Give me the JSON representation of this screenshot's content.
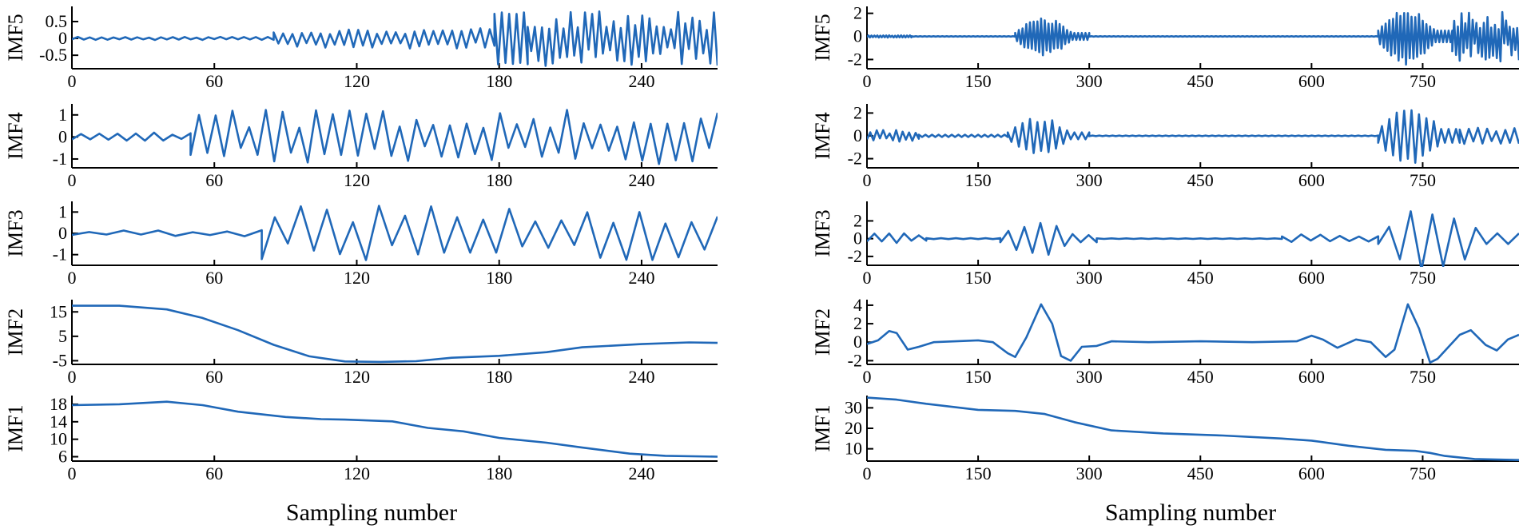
{
  "chart_data": [
    {
      "panel": "left",
      "type": "line",
      "xlabel": "Sampling number",
      "line_color": "#2068b8",
      "xlim": [
        0,
        272
      ],
      "xticks": [
        0,
        60,
        120,
        180,
        240
      ],
      "subplots": [
        {
          "ylabel": "IMF5",
          "ylim": [
            -0.9,
            0.95
          ],
          "yticks": [
            0.5,
            0,
            -0.5
          ],
          "ytick_labels": [
            "0.5",
            "0",
            "-0.5"
          ],
          "segments": [
            {
              "x0": 0,
              "x1": 85,
              "period": 5,
              "amp": [
                0.02,
                0.05
              ],
              "offset": 0
            },
            {
              "x0": 85,
              "x1": 178,
              "period": 4,
              "amp": [
                0.12,
                0.3
              ],
              "offset": 0
            },
            {
              "x0": 178,
              "x1": 192,
              "period": 3,
              "amp": [
                0.72,
                0.8
              ],
              "offset": 0
            },
            {
              "x0": 192,
              "x1": 272,
              "period": 3,
              "amp": [
                0.25,
                0.82
              ],
              "offset": 0
            }
          ]
        },
        {
          "ylabel": "IMF4",
          "ylim": [
            -1.4,
            1.5
          ],
          "yticks": [
            1,
            0,
            -1
          ],
          "ytick_labels": [
            "1",
            "0",
            "-1"
          ],
          "segments": [
            {
              "x0": 0,
              "x1": 50,
              "period": 8,
              "amp": [
                0.08,
                0.2
              ],
              "offset": 0
            },
            {
              "x0": 50,
              "x1": 272,
              "period": 7,
              "amp": [
                0.4,
                1.25
              ],
              "offset": 0
            }
          ]
        },
        {
          "ylabel": "IMF3",
          "ylim": [
            -1.5,
            1.5
          ],
          "yticks": [
            1,
            0,
            -1
          ],
          "ytick_labels": [
            "1",
            "0",
            "-1"
          ],
          "segments": [
            {
              "x0": 0,
              "x1": 80,
              "period": 14,
              "amp": [
                0.05,
                0.15
              ],
              "offset": 0
            },
            {
              "x0": 80,
              "x1": 272,
              "period": 11,
              "amp": [
                0.4,
                1.3
              ],
              "offset": 0
            }
          ]
        },
        {
          "ylabel": "IMF2",
          "ylim": [
            -6.5,
            20
          ],
          "yticks": [
            15,
            5,
            -5
          ],
          "ytick_labels": [
            "15",
            "5",
            "-5"
          ],
          "points": [
            [
              0,
              17.5
            ],
            [
              20,
              17.5
            ],
            [
              40,
              16
            ],
            [
              55,
              12.5
            ],
            [
              70,
              7.5
            ],
            [
              85,
              1.5
            ],
            [
              100,
              -3.2
            ],
            [
              115,
              -5.3
            ],
            [
              130,
              -5.5
            ],
            [
              145,
              -5.2
            ],
            [
              160,
              -3.8
            ],
            [
              180,
              -3.0
            ],
            [
              200,
              -1.5
            ],
            [
              215,
              0.5
            ],
            [
              240,
              1.8
            ],
            [
              260,
              2.5
            ],
            [
              272,
              2.3
            ]
          ]
        },
        {
          "ylabel": "IMF1",
          "ylim": [
            5,
            20
          ],
          "yticks": [
            18,
            14,
            10,
            6
          ],
          "ytick_labels": [
            "18",
            "14",
            "10",
            "6"
          ],
          "points": [
            [
              0,
              17.8
            ],
            [
              20,
              18.0
            ],
            [
              40,
              18.6
            ],
            [
              55,
              17.8
            ],
            [
              70,
              16.3
            ],
            [
              90,
              15.1
            ],
            [
              105,
              14.6
            ],
            [
              115,
              14.5
            ],
            [
              135,
              14.1
            ],
            [
              150,
              12.6
            ],
            [
              165,
              11.8
            ],
            [
              180,
              10.3
            ],
            [
              200,
              9.2
            ],
            [
              215,
              8.1
            ],
            [
              235,
              6.7
            ],
            [
              250,
              6.2
            ],
            [
              272,
              6.0
            ]
          ]
        }
      ]
    },
    {
      "panel": "right",
      "type": "line",
      "xlabel": "Sampling number",
      "line_color": "#2068b8",
      "xlim": [
        0,
        880
      ],
      "xticks": [
        0,
        150,
        300,
        450,
        600,
        750
      ],
      "subplots": [
        {
          "ylabel": "IMF5",
          "ylim": [
            -2.8,
            2.6
          ],
          "yticks": [
            2,
            0,
            -2
          ],
          "ytick_labels": [
            "2",
            "0",
            "-2"
          ],
          "segments": [
            {
              "x0": 0,
              "x1": 60,
              "period": 4,
              "amp": [
                0.05,
                0.1
              ],
              "offset": 0
            },
            {
              "x0": 60,
              "x1": 200,
              "period": 6,
              "amp": [
                0.02,
                0.02
              ],
              "offset": 0
            },
            {
              "x0": 200,
              "x1": 300,
              "period": 5,
              "amp": [
                0.3,
                1.7
              ],
              "offset": 0,
              "burst": true
            },
            {
              "x0": 300,
              "x1": 690,
              "period": 6,
              "amp": [
                0.02,
                0.02
              ],
              "offset": 0
            },
            {
              "x0": 690,
              "x1": 790,
              "period": 5,
              "amp": [
                0.5,
                2.5
              ],
              "offset": 0,
              "burst": true
            },
            {
              "x0": 790,
              "x1": 880,
              "period": 5,
              "amp": [
                0.6,
                2.2
              ],
              "offset": 0
            }
          ]
        },
        {
          "ylabel": "IMF4",
          "ylim": [
            -2.8,
            2.8
          ],
          "yticks": [
            2,
            0,
            -2
          ],
          "ytick_labels": [
            "2",
            "0",
            "-2"
          ],
          "segments": [
            {
              "x0": 0,
              "x1": 70,
              "period": 9,
              "amp": [
                0.2,
                0.6
              ],
              "offset": 0
            },
            {
              "x0": 70,
              "x1": 190,
              "period": 9,
              "amp": [
                0.1,
                0.1
              ],
              "offset": 0
            },
            {
              "x0": 190,
              "x1": 300,
              "period": 10,
              "amp": [
                0.3,
                1.7
              ],
              "offset": 0,
              "burst": true
            },
            {
              "x0": 300,
              "x1": 690,
              "period": 9,
              "amp": [
                0.03,
                0.03
              ],
              "offset": 0
            },
            {
              "x0": 690,
              "x1": 800,
              "period": 10,
              "amp": [
                0.6,
                2.6
              ],
              "offset": 0,
              "burst": true
            },
            {
              "x0": 800,
              "x1": 880,
              "period": 12,
              "amp": [
                0.4,
                0.7
              ],
              "offset": 0
            }
          ]
        },
        {
          "ylabel": "IMF3",
          "ylim": [
            -3.0,
            4.2
          ],
          "yticks": [
            2,
            0,
            -2
          ],
          "ytick_labels": [
            "2",
            "0",
            "-2"
          ],
          "segments": [
            {
              "x0": 0,
              "x1": 80,
              "period": 20,
              "amp": [
                0.2,
                0.6
              ],
              "offset": 0
            },
            {
              "x0": 80,
              "x1": 180,
              "period": 20,
              "amp": [
                0.05,
                0.05
              ],
              "offset": 0
            },
            {
              "x0": 180,
              "x1": 310,
              "period": 22,
              "amp": [
                0.4,
                2.0
              ],
              "offset": 0,
              "burst": true
            },
            {
              "x0": 310,
              "x1": 560,
              "period": 20,
              "amp": [
                0.03,
                0.03
              ],
              "offset": 0
            },
            {
              "x0": 560,
              "x1": 690,
              "period": 25,
              "amp": [
                0.2,
                0.5
              ],
              "offset": 0
            },
            {
              "x0": 690,
              "x1": 880,
              "period": 30,
              "amp": [
                0.6,
                3.8
              ],
              "offset": 0,
              "burst": true
            }
          ]
        },
        {
          "ylabel": "IMF2",
          "ylim": [
            -2.4,
            4.6
          ],
          "yticks": [
            4,
            2,
            0,
            -2
          ],
          "ytick_labels": [
            "4",
            "2",
            "0",
            "-2"
          ],
          "points": [
            [
              0,
              -0.2
            ],
            [
              15,
              0.2
            ],
            [
              30,
              1.2
            ],
            [
              40,
              1.0
            ],
            [
              55,
              -0.8
            ],
            [
              70,
              -0.5
            ],
            [
              90,
              0.0
            ],
            [
              120,
              0.1
            ],
            [
              150,
              0.2
            ],
            [
              170,
              0.0
            ],
            [
              190,
              -1.2
            ],
            [
              200,
              -1.6
            ],
            [
              215,
              0.5
            ],
            [
              235,
              4.1
            ],
            [
              250,
              2.0
            ],
            [
              262,
              -1.5
            ],
            [
              275,
              -2.0
            ],
            [
              290,
              -0.5
            ],
            [
              310,
              -0.4
            ],
            [
              330,
              0.1
            ],
            [
              380,
              0.0
            ],
            [
              450,
              0.1
            ],
            [
              520,
              0.0
            ],
            [
              580,
              0.1
            ],
            [
              600,
              0.7
            ],
            [
              615,
              0.3
            ],
            [
              635,
              -0.6
            ],
            [
              660,
              0.3
            ],
            [
              680,
              0.0
            ],
            [
              700,
              -1.6
            ],
            [
              712,
              -0.8
            ],
            [
              730,
              4.1
            ],
            [
              745,
              1.5
            ],
            [
              760,
              -2.2
            ],
            [
              770,
              -1.8
            ],
            [
              785,
              -0.5
            ],
            [
              800,
              0.8
            ],
            [
              815,
              1.3
            ],
            [
              835,
              -0.3
            ],
            [
              850,
              -0.9
            ],
            [
              865,
              0.3
            ],
            [
              880,
              0.8
            ]
          ]
        },
        {
          "ylabel": "IMF1",
          "ylim": [
            4,
            36
          ],
          "yticks": [
            30,
            20,
            10
          ],
          "ytick_labels": [
            "30",
            "20",
            "10"
          ],
          "points": [
            [
              0,
              35
            ],
            [
              40,
              34
            ],
            [
              80,
              32
            ],
            [
              150,
              29
            ],
            [
              200,
              28.5
            ],
            [
              240,
              27
            ],
            [
              280,
              23
            ],
            [
              330,
              19
            ],
            [
              400,
              17.5
            ],
            [
              480,
              16.5
            ],
            [
              560,
              15
            ],
            [
              600,
              14
            ],
            [
              650,
              11.5
            ],
            [
              700,
              9.5
            ],
            [
              740,
              9.0
            ],
            [
              760,
              8.0
            ],
            [
              780,
              6.5
            ],
            [
              820,
              5.0
            ],
            [
              880,
              4.5
            ]
          ]
        }
      ]
    }
  ]
}
